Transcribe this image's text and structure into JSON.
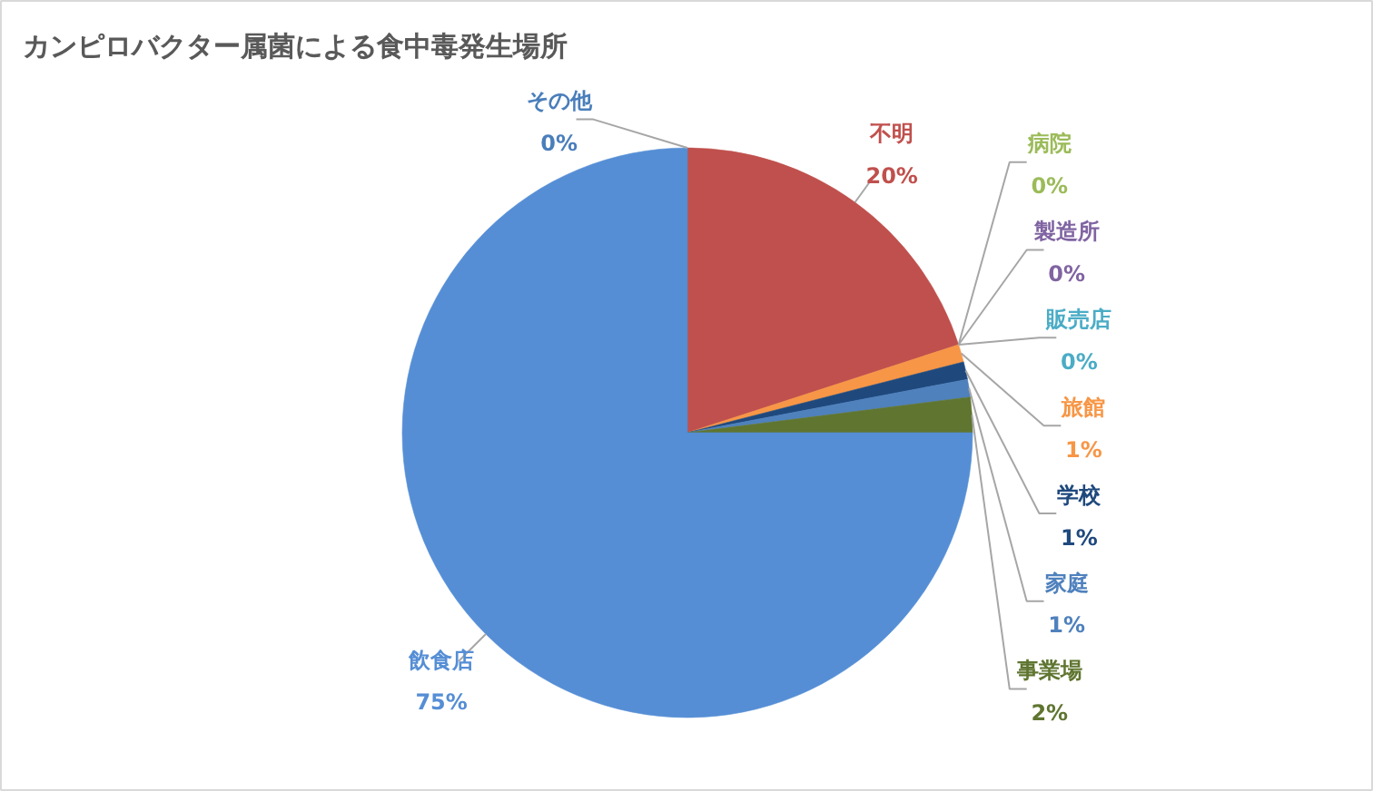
{
  "chart_data": {
    "type": "pie",
    "title": "カンピロバクター属菌による食中毒発生場所",
    "categories": [
      "不明",
      "病院",
      "製造所",
      "販売店",
      "旅館",
      "学校",
      "家庭",
      "事業場",
      "飲食店",
      "その他"
    ],
    "values": [
      20,
      0,
      0,
      0,
      1,
      1,
      1,
      2,
      75,
      0
    ],
    "value_labels": [
      "20%",
      "0%",
      "0%",
      "0%",
      "1%",
      "1%",
      "1%",
      "2%",
      "75%",
      "0%"
    ],
    "colors": [
      "#c0504d",
      "#9bbb59",
      "#8064a2",
      "#4bacc6",
      "#f79646",
      "#1f497d",
      "#4f81bd",
      "#5f7530",
      "#558ed5",
      "#4a7ebb"
    ]
  }
}
